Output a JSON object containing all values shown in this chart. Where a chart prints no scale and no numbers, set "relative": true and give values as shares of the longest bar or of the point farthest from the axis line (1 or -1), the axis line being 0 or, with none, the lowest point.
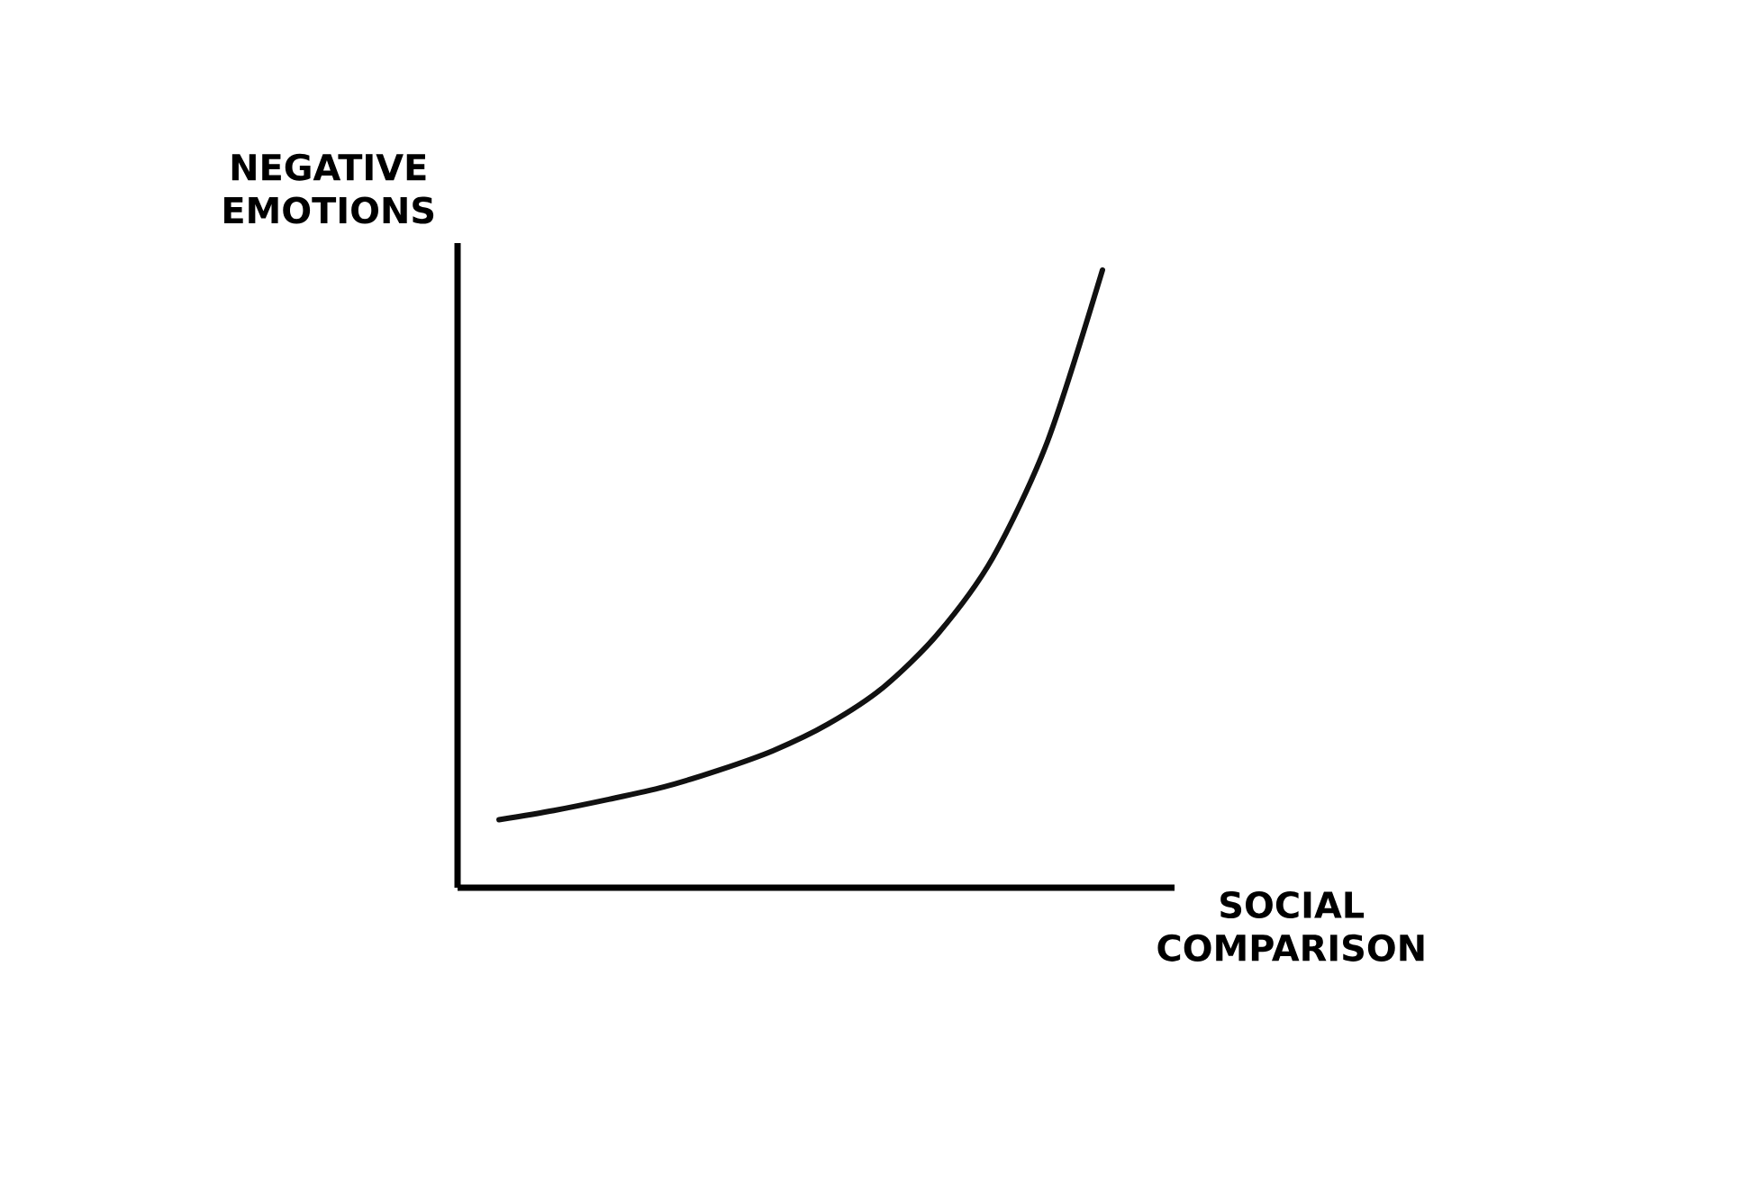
{
  "chart_data": {
    "type": "line",
    "relative": true,
    "xlabel": "SOCIAL COMPARISON",
    "ylabel": "NEGATIVE EMOTIONS",
    "categories": [
      null,
      null,
      null,
      null,
      null,
      null,
      null,
      null,
      null,
      null,
      null,
      null
    ],
    "color": "#111111",
    "line_style": "solid",
    "marker": "none",
    "values": [
      0.11,
      0.125,
      0.143,
      0.163,
      0.19,
      0.222,
      0.265,
      0.324,
      0.411,
      0.534,
      0.723,
      1.0
    ]
  }
}
